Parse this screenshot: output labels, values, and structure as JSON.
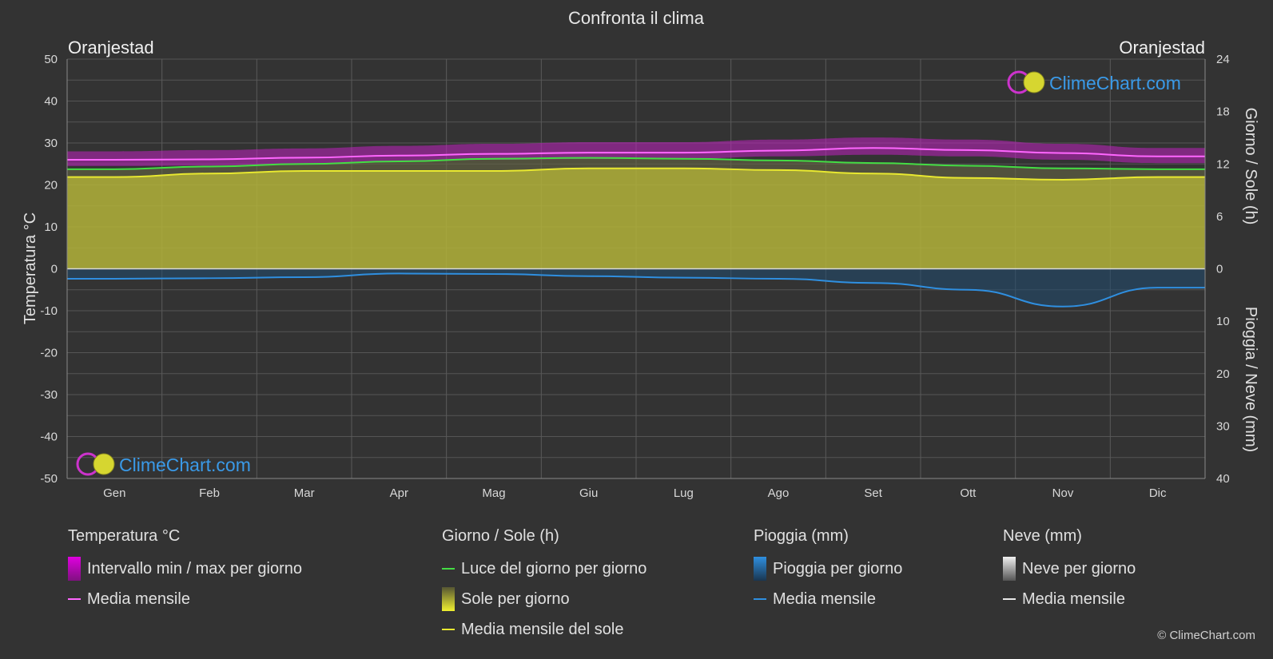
{
  "chart_data": {
    "type": "area",
    "title": "Confronta il clima",
    "location_left": "Oranjestad",
    "location_right": "Oranjestad",
    "categories": [
      "Gen",
      "Feb",
      "Mar",
      "Apr",
      "Mag",
      "Giu",
      "Lug",
      "Ago",
      "Set",
      "Ott",
      "Nov",
      "Dic"
    ],
    "y_left": {
      "label": "Temperatura °C",
      "range": [
        -50,
        50
      ],
      "ticks": [
        50,
        40,
        30,
        20,
        10,
        0,
        -10,
        -20,
        -30,
        -40,
        -50
      ]
    },
    "y_right_top": {
      "label": "Giorno / Sole (h)",
      "range": [
        0,
        24
      ],
      "ticks": [
        24,
        18,
        12,
        6,
        0
      ]
    },
    "y_right_bottom": {
      "label": "Pioggia / Neve (mm)",
      "range": [
        0,
        40
      ],
      "ticks": [
        10,
        20,
        30,
        40
      ]
    },
    "series": [
      {
        "name": "Media mensile",
        "group": "temperature",
        "unit": "°C",
        "color": "#ff66ff",
        "values": [
          26.0,
          26.1,
          26.5,
          27.0,
          27.4,
          27.7,
          27.7,
          28.2,
          28.8,
          28.3,
          27.6,
          26.8
        ]
      },
      {
        "name": "Luce del giorno per giorno",
        "group": "daylight",
        "unit": "h",
        "color": "#44dd44",
        "values": [
          11.4,
          11.7,
          12.0,
          12.3,
          12.6,
          12.7,
          12.6,
          12.4,
          12.1,
          11.8,
          11.5,
          11.4
        ]
      },
      {
        "name": "Media mensile del sole",
        "group": "sunshine",
        "unit": "h",
        "color": "#e8e830",
        "values": [
          10.5,
          10.9,
          11.2,
          11.2,
          11.2,
          11.5,
          11.5,
          11.3,
          10.9,
          10.4,
          10.2,
          10.5
        ]
      },
      {
        "name": "Media mensile",
        "group": "rain",
        "unit": "mm",
        "color": "#2f8fe0",
        "values": [
          1.9,
          1.8,
          1.6,
          0.9,
          1.0,
          1.4,
          1.7,
          1.9,
          2.7,
          4.0,
          7.2,
          3.6
        ]
      }
    ],
    "temp_daily_range": {
      "min": [
        24.5,
        24.6,
        25.0,
        25.5,
        26.0,
        26.2,
        26.2,
        26.8,
        27.2,
        26.8,
        26.0,
        25.2
      ],
      "max": [
        28.0,
        28.3,
        28.7,
        29.3,
        29.8,
        30.2,
        30.2,
        30.8,
        31.3,
        30.8,
        29.8,
        28.8
      ]
    },
    "grid": true
  },
  "legend": {
    "temp": {
      "title": "Temperatura °C",
      "range_label": "Intervallo min / max per giorno",
      "mean_label": "Media mensile"
    },
    "sun": {
      "title": "Giorno / Sole (h)",
      "daylight_label": "Luce del giorno per giorno",
      "sun_label": "Sole per giorno",
      "sun_mean_label": "Media mensile del sole"
    },
    "rain": {
      "title": "Pioggia (mm)",
      "rain_label": "Pioggia per giorno",
      "mean_label": "Media mensile"
    },
    "snow": {
      "title": "Neve (mm)",
      "snow_label": "Neve per giorno",
      "mean_label": "Media mensile"
    }
  },
  "watermark": "ClimeChart.com",
  "copyright": "© ClimeChart.com",
  "colors": {
    "background": "#333333",
    "temp_band": "#c020c0",
    "sun_fill": "#b3b33a",
    "rain": "#2f8fe0"
  }
}
